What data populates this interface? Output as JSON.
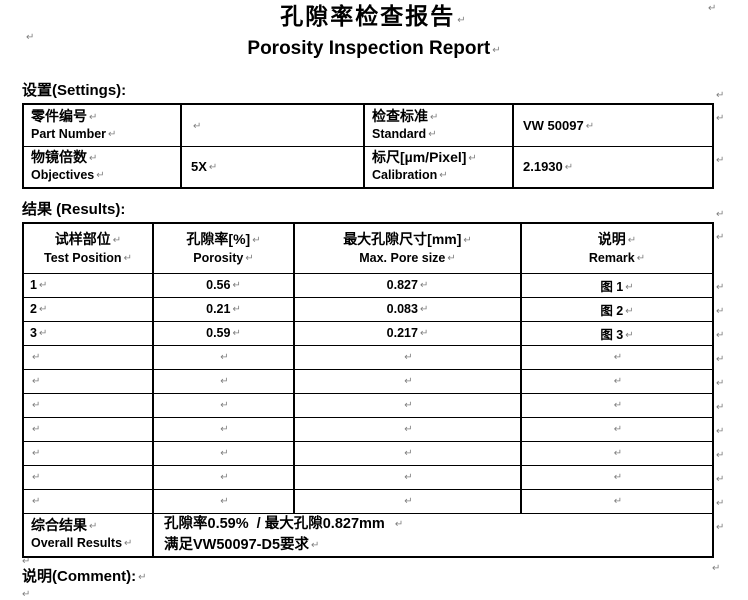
{
  "document": {
    "title_cn": "孔隙率检查报告",
    "title_en": "Porosity Inspection Report",
    "settings_label": "设置(Settings):",
    "results_label": "结果 (Results):",
    "comment_label": "说明(Comment):"
  },
  "settings_table": {
    "rows": [
      {
        "label_cn": "零件编号",
        "label_en": "Part Number",
        "value": "",
        "label2_cn": "检查标准",
        "label2_en": "Standard",
        "value2": "VW 50097"
      },
      {
        "label_cn": "物镜倍数",
        "label_en": "Objectives",
        "value": "5X",
        "label2_cn": "标尺[µm/Pixel]",
        "label2_en": "Calibration",
        "value2": "2.1930"
      }
    ]
  },
  "results_table": {
    "headers": [
      {
        "cn": "试样部位",
        "en": "Test Position"
      },
      {
        "cn": "孔隙率[%]",
        "en": "Porosity"
      },
      {
        "cn": "最大孔隙尺寸[mm]",
        "en": "Max. Pore size"
      },
      {
        "cn": "说明",
        "en": "Remark"
      }
    ],
    "rows": [
      {
        "position": "1",
        "porosity": "0.56",
        "pore_size": "0.827",
        "remark": "图 1"
      },
      {
        "position": "2",
        "porosity": "0.21",
        "pore_size": "0.083",
        "remark": "图 2"
      },
      {
        "position": "3",
        "porosity": "0.59",
        "pore_size": "0.217",
        "remark": "图 3"
      },
      {
        "position": "",
        "porosity": "",
        "pore_size": "",
        "remark": ""
      },
      {
        "position": "",
        "porosity": "",
        "pore_size": "",
        "remark": ""
      },
      {
        "position": "",
        "porosity": "",
        "pore_size": "",
        "remark": ""
      },
      {
        "position": "",
        "porosity": "",
        "pore_size": "",
        "remark": ""
      },
      {
        "position": "",
        "porosity": "",
        "pore_size": "",
        "remark": ""
      },
      {
        "position": "",
        "porosity": "",
        "pore_size": "",
        "remark": ""
      },
      {
        "position": "",
        "porosity": "",
        "pore_size": "",
        "remark": ""
      }
    ],
    "summary": {
      "label_cn": "综合结果",
      "label_en": "Overall Results",
      "line1": "孔隙率0.59%  / 最大孔隙0.827mm",
      "line2": "满足VW50097-D5要求"
    }
  }
}
